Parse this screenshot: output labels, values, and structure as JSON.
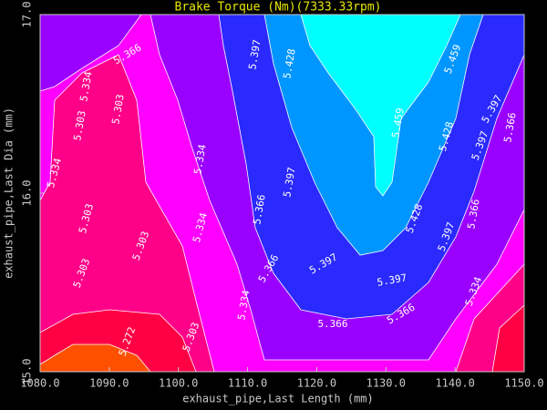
{
  "chart_data": {
    "type": "contour",
    "title": "Brake Torque (Nm)(7333.33rpm)",
    "x_label": "exhaust_pipe,Last Length (mm)",
    "y_label": "exhaust_pipe,Last Dia (mm)",
    "xlim": [
      1080,
      1150
    ],
    "ylim": [
      15,
      17
    ],
    "xticks": [
      {
        "value": 1080,
        "label": "1080.0"
      },
      {
        "value": 1090,
        "label": "1090.0"
      },
      {
        "value": 1100,
        "label": "1100.0"
      },
      {
        "value": 1110,
        "label": "1110.0"
      },
      {
        "value": 1120,
        "label": "1120.0"
      },
      {
        "value": 1130,
        "label": "1130.0"
      },
      {
        "value": 1140,
        "label": "1140.0"
      },
      {
        "value": 1150,
        "label": "1150.0"
      }
    ],
    "yticks": [
      {
        "value": 15,
        "label": "15.0"
      },
      {
        "value": 16,
        "label": "16.0"
      },
      {
        "value": 17,
        "label": "17.0"
      }
    ],
    "levels": [
      5.272,
      5.303,
      5.334,
      5.366,
      5.397,
      5.428,
      5.459
    ],
    "colors": [
      "#ff5000",
      "#ff0044",
      "#ff0088",
      "#ff00ff",
      "#9a00ff",
      "#2a2aff",
      "#0096ff",
      "#00ffff"
    ]
  }
}
